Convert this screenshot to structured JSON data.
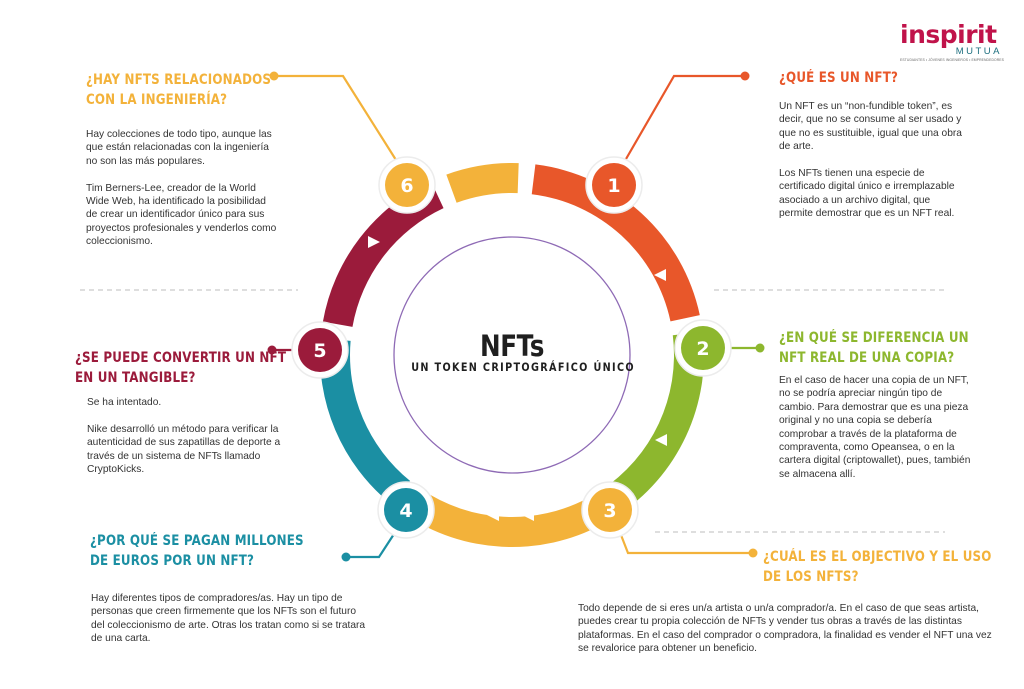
{
  "center": {
    "title": "NFTs",
    "subtitle": "UN TOKEN CRIPTOGRÁFICO ÚNICO"
  },
  "logo": {
    "word": "inspirit",
    "sub": "MUTUA",
    "tagline": "ESTUDIANTES • JÓVENES INGENIEROS • EMPRENDEDORES"
  },
  "colors": {
    "orange": "#e8572a",
    "green": "#8db72e",
    "yellow": "#f3b23a",
    "teal": "#1b8fa3",
    "maroon": "#9b1b3b",
    "purple": "#8e6ab5"
  },
  "segments": [
    {
      "number": "1",
      "color": "#e8572a"
    },
    {
      "number": "2",
      "color": "#8db72e"
    },
    {
      "number": "3",
      "color": "#f3b23a"
    },
    {
      "number": "4",
      "color": "#1b8fa3"
    },
    {
      "number": "5",
      "color": "#9b1b3b"
    },
    {
      "number": "6",
      "color": "#f3b23a"
    }
  ],
  "sections": [
    {
      "number": "1",
      "heading": [
        "¿Qué es un NFT?"
      ],
      "paragraphs": [
        "Un NFT es un “non-fundible token”, es decir, que no se consume al ser usado y que no es sustituible, igual que una obra de arte.",
        "Los NFTs tienen una especie de certificado digital único e irremplazable asociado a un archivo digital, que permite demostrar que es un NFT real."
      ]
    },
    {
      "number": "2",
      "heading": [
        "¿En qué se diferencia un",
        "NFT real de una copia?"
      ],
      "paragraphs": [
        "En el caso de hacer una copia de un NFT, no se podría apreciar ningún tipo de cambio. Para demostrar que es una pieza original y no una copia se debería comprobar a través de la plataforma de compraventa, como Opeansea, o en la cartera digital (criptowallet), pues, también se almacena allí."
      ]
    },
    {
      "number": "3",
      "heading": [
        "¿Cuál es el objectivo y el uso",
        "de los NFTs?"
      ],
      "paragraphs": [
        "Todo depende de si eres un/a artista o un/a comprador/a. En el caso de que seas artista, puedes crear tu propia colección de NFTs y vender tus obras a través de las distintas plataformas. En el caso del comprador o compradora, la finalidad es vender el NFT una vez se revalorice para obtener un beneficio."
      ]
    },
    {
      "number": "4",
      "heading": [
        "¿Por qué se pagan millones",
        "de euros por un NFT?"
      ],
      "paragraphs": [
        "Hay diferentes tipos de compradores/as. Hay un tipo de personas que creen firmemente que los NFTs son el futuro del coleccionismo de arte. Otras los tratan como si se tratara de una carta."
      ]
    },
    {
      "number": "5",
      "heading": [
        "¿Se puede convertir un NFT",
        "en un tangible?"
      ],
      "paragraphs": [
        "Se ha intentado.",
        "Nike desarrolló un método para verificar la autenticidad de sus zapatillas de deporte a través de un sistema de NFTs llamado CryptoKicks."
      ]
    },
    {
      "number": "6",
      "heading": [
        "¿Hay NFTs relacionados",
        "con la ingeniería?"
      ],
      "paragraphs": [
        "Hay colecciones de todo tipo, aunque las que están relacionadas con la ingeniería no son las más populares.",
        "Tim Berners-Lee, creador de la World Wide Web, ha identificado la posibilidad de crear un identificador único para sus proyectos profesionales y venderlos como coleccionismo."
      ]
    }
  ]
}
